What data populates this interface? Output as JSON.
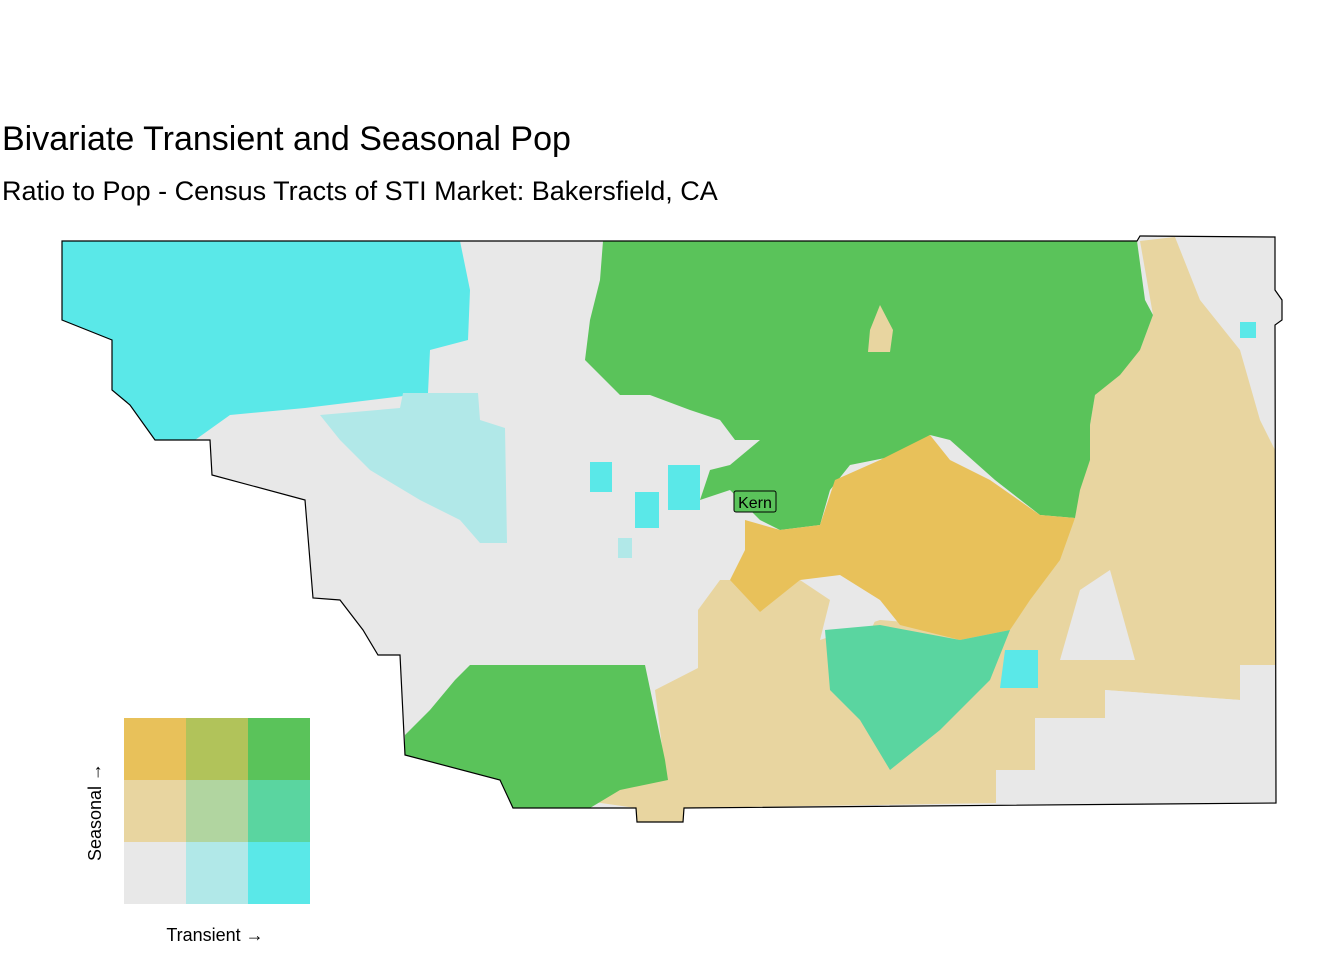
{
  "title": "Bivariate Transient and Seasonal Pop",
  "subtitle": "Ratio to Pop - Census Tracts of STI Market: Bakersfield, CA",
  "map": {
    "label": "Kern"
  },
  "legend": {
    "x_label": "Transient →",
    "y_label": "Seasonal →",
    "colors": [
      [
        "#E8C15A",
        "#B1C35A",
        "#5AC35A"
      ],
      [
        "#E8D5A0",
        "#B1D5A0",
        "#5AD5A0"
      ],
      [
        "#E8E8E8",
        "#B1E8E8",
        "#5AE8E8"
      ]
    ]
  }
}
